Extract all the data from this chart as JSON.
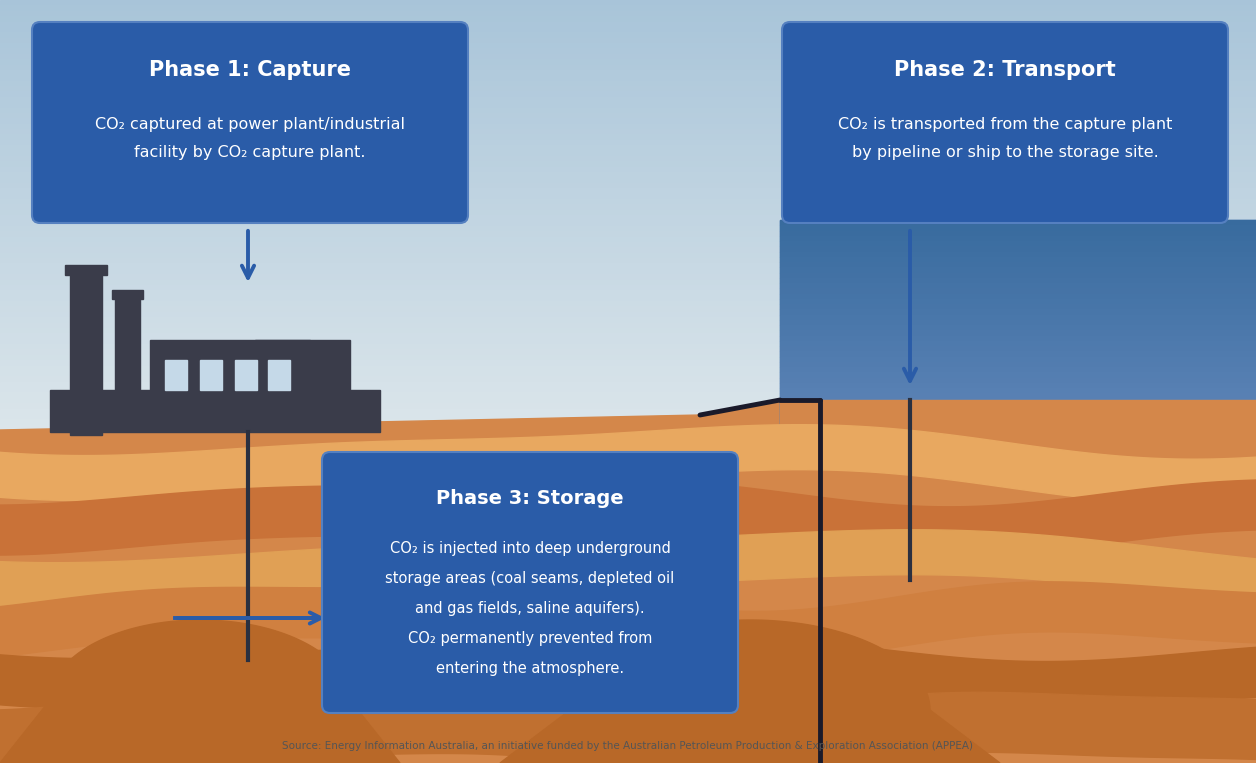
{
  "fig_width": 12.56,
  "fig_height": 7.63,
  "box_color": "#2a5ca8",
  "box_edge_color": "#4a7cc8",
  "arrow_color": "#2a5ca8",
  "dark_line_color": "#2a3040",
  "factory_color": "#3a3c4a",
  "text_white": "#ffffff",
  "sky_top": "#b8cfe0",
  "sky_bottom": "#dce8f0",
  "water_color": "#4a7eb8",
  "ground_top": "#cc7c3a",
  "layer_colors": [
    "#d4874a",
    "#e8a860",
    "#c97238",
    "#e0a055",
    "#d08040",
    "#b86828",
    "#c07030"
  ],
  "phase1_title": "Phase 1: Capture",
  "phase1_line1": "CO₂ captured at power plant/industrial",
  "phase1_line2": "facility by CO₂ capture plant.",
  "phase2_title": "Phase 2: Transport",
  "phase2_line1": "CO₂ is transported from the capture plant",
  "phase2_line2": "by pipeline or ship to the storage site.",
  "phase3_title": "Phase 3: Storage",
  "phase3_line1": "CO₂ is injected into deep underground",
  "phase3_line2": "storage areas (coal seams, depleted oil",
  "phase3_line3": "and gas fields, saline aquifers).",
  "phase3_line4": "CO₂ permanently prevented from",
  "phase3_line5": "entering the atmosphere.",
  "source_text": "Source: Energy Information Australia, an initiative funded by the Australian Petroleum Production & Exploration Association (APPEA)"
}
